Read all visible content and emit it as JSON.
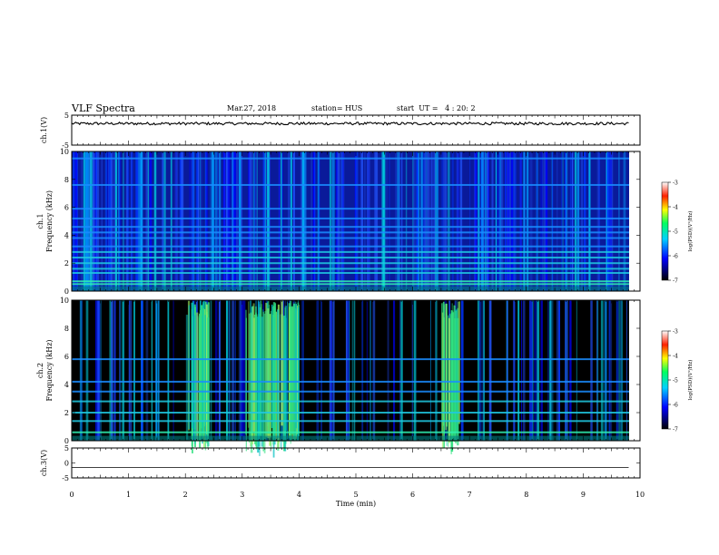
{
  "header": {
    "title": "VLF Spectra",
    "date": "Mar.27, 2018",
    "station": "station= HUS",
    "start": "start  UT =   4 : 20: 2"
  },
  "chart_data": [
    {
      "type": "line",
      "name": "ch1-waveform",
      "ylabel": "ch.1(V)",
      "ylim": [
        -5,
        5
      ],
      "yticks": [
        "5",
        "-5"
      ],
      "xlim": [
        0,
        10
      ],
      "approx_level_V": 2.2,
      "color": "#000000"
    },
    {
      "type": "heatmap",
      "name": "ch1-spectrogram",
      "ylabel": "ch.1",
      "ylabel2": "Frequency  (kHz)",
      "ylim": [
        0,
        10
      ],
      "yticks": [
        "0",
        "2",
        "4",
        "6",
        "8",
        "10"
      ],
      "xlim": [
        0,
        9.8
      ],
      "colorbar": {
        "label": "log(PSD)(V²/Hz)",
        "ticks": [
          "-3",
          "-4",
          "-5",
          "-6",
          "-7"
        ],
        "range": [
          -7,
          -3
        ]
      },
      "horizontal_lines_kHz": [
        0.5,
        0.7,
        1.3,
        1.6,
        2.0,
        2.4,
        2.8,
        3.2,
        3.8,
        4.2,
        4.6,
        5.2,
        5.9,
        7.6,
        9.5
      ]
    },
    {
      "type": "heatmap",
      "name": "ch2-spectrogram",
      "ylabel": "ch.2",
      "ylabel2": "Frequency  (kHz)",
      "ylim": [
        0,
        10
      ],
      "yticks": [
        "0",
        "2",
        "4",
        "6",
        "8",
        "10"
      ],
      "xlim": [
        0,
        9.8
      ],
      "colorbar": {
        "label": "log(PSD)(V²/Hz)",
        "ticks": [
          "-3",
          "-4",
          "-5",
          "-6",
          "-7"
        ],
        "range": [
          -7,
          -3
        ]
      },
      "horizontal_lines_kHz": [
        0.6,
        1.4,
        2.0,
        2.8,
        3.5,
        4.2,
        5.8
      ],
      "bright_bursts_min": [
        [
          2.0,
          2.4
        ],
        [
          3.05,
          4.0
        ],
        [
          6.5,
          6.8
        ]
      ]
    },
    {
      "type": "line",
      "name": "ch3-waveform",
      "ylabel": "ch.3(V)",
      "ylim": [
        -5,
        5
      ],
      "yticks": [
        "5",
        "0",
        "-5"
      ],
      "xlim": [
        0,
        10
      ],
      "approx_level_V": -1.5,
      "color": "#000000"
    }
  ],
  "xaxis": {
    "label": "Time  (min)",
    "ticks": [
      "0",
      "1",
      "2",
      "3",
      "4",
      "5",
      "6",
      "7",
      "8",
      "9",
      "10"
    ]
  }
}
